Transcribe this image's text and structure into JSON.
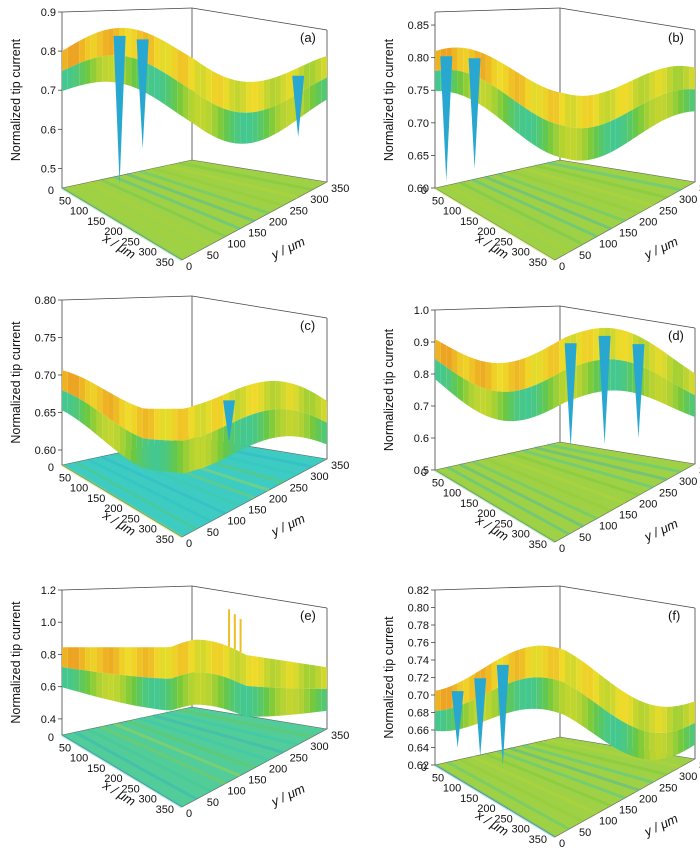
{
  "chart_data": [
    {
      "type": "surface3d",
      "panel_label": "(a)",
      "zlabel": "Normalized tip current",
      "xlabel": "x / μm",
      "ylabel": "y / μm",
      "zlim": [
        0.45,
        0.9
      ],
      "zticks": [
        "0.5",
        "0.6",
        "0.7",
        "0.8",
        "0.9"
      ],
      "xticks": [
        "0",
        "50",
        "100",
        "150",
        "200",
        "250",
        "300",
        "350"
      ],
      "yticks": [
        "0",
        "50",
        "100",
        "150",
        "200",
        "250",
        "300",
        "350"
      ],
      "surface": {
        "base": 0.8,
        "pits": [
          {
            "x": 60,
            "y": 20,
            "min": 0.46
          },
          {
            "x": 120,
            "y": 30,
            "min": 0.55
          },
          {
            "x": 330,
            "y": 250,
            "min": 0.58
          }
        ],
        "range": [
          0.46,
          0.87
        ]
      }
    },
    {
      "type": "surface3d",
      "panel_label": "(b)",
      "zlabel": "Normalized tip current",
      "xlabel": "x / μm",
      "ylabel": "y / μm",
      "zlim": [
        0.6,
        0.87
      ],
      "zticks": [
        "0.60",
        "0.65",
        "0.70",
        "0.75",
        "0.80",
        "0.85"
      ],
      "xticks": [
        "0",
        "50",
        "100",
        "150",
        "200",
        "250",
        "300",
        "350"
      ],
      "yticks": [
        "0",
        "50",
        "100",
        "150",
        "200",
        "250",
        "300",
        "350"
      ],
      "surface": {
        "base": 0.78,
        "range": [
          0.6,
          0.86
        ]
      }
    },
    {
      "type": "surface3d",
      "panel_label": "(c)",
      "zlabel": "Normalized tip current",
      "xlabel": "x / μm",
      "ylabel": "y / μm",
      "zlim": [
        0.58,
        0.8
      ],
      "zticks": [
        "0.60",
        "0.65",
        "0.70",
        "0.75",
        "0.80"
      ],
      "xticks": [
        "0",
        "50",
        "100",
        "150",
        "200",
        "250",
        "300",
        "350"
      ],
      "yticks": [
        "0",
        "50",
        "100",
        "150",
        "200",
        "250",
        "300",
        "350"
      ],
      "surface": {
        "base": 0.68,
        "range": [
          0.6,
          0.8
        ]
      }
    },
    {
      "type": "surface3d",
      "panel_label": "(d)",
      "zlabel": "Normalized tip current",
      "xlabel": "x / μm",
      "ylabel": "y / μm",
      "zlim": [
        0.5,
        1.0
      ],
      "zticks": [
        "0.5",
        "0.6",
        "0.7",
        "0.8",
        "0.9",
        "1.0"
      ],
      "xticks": [
        "0",
        "50",
        "100",
        "150",
        "200",
        "250",
        "300",
        "350"
      ],
      "yticks": [
        "0",
        "50",
        "100",
        "150",
        "200",
        "250",
        "300",
        "350"
      ],
      "surface": {
        "base": 0.9,
        "range": [
          0.57,
          0.98
        ]
      }
    },
    {
      "type": "surface3d",
      "panel_label": "(e)",
      "zlabel": "Normalized tip current",
      "xlabel": "x / μm",
      "ylabel": "y / μm",
      "zlim": [
        0.3,
        1.2
      ],
      "zticks": [
        "0.4",
        "0.6",
        "0.8",
        "1.0",
        "1.2"
      ],
      "xticks": [
        "0",
        "50",
        "100",
        "150",
        "200",
        "250",
        "300",
        "350"
      ],
      "yticks": [
        "0",
        "50",
        "100",
        "150",
        "200",
        "250",
        "300",
        "350"
      ],
      "surface": {
        "base": 0.78,
        "range": [
          0.62,
          1.12
        ]
      }
    },
    {
      "type": "surface3d",
      "panel_label": "(f)",
      "zlabel": "Normalized tip current",
      "xlabel": "x / μm",
      "ylabel": "y / μm",
      "zlim": [
        0.62,
        0.82
      ],
      "zticks": [
        "0.62",
        "0.64",
        "0.66",
        "0.68",
        "0.70",
        "0.72",
        "0.74",
        "0.76",
        "0.78",
        "0.80",
        "0.82"
      ],
      "xticks": [
        "0",
        "50",
        "100",
        "150",
        "200",
        "250",
        "300",
        "350"
      ],
      "yticks": [
        "0",
        "50",
        "100",
        "150",
        "200",
        "250",
        "300",
        "350"
      ],
      "surface": {
        "base": 0.73,
        "range": [
          0.62,
          0.8
        ]
      }
    }
  ]
}
